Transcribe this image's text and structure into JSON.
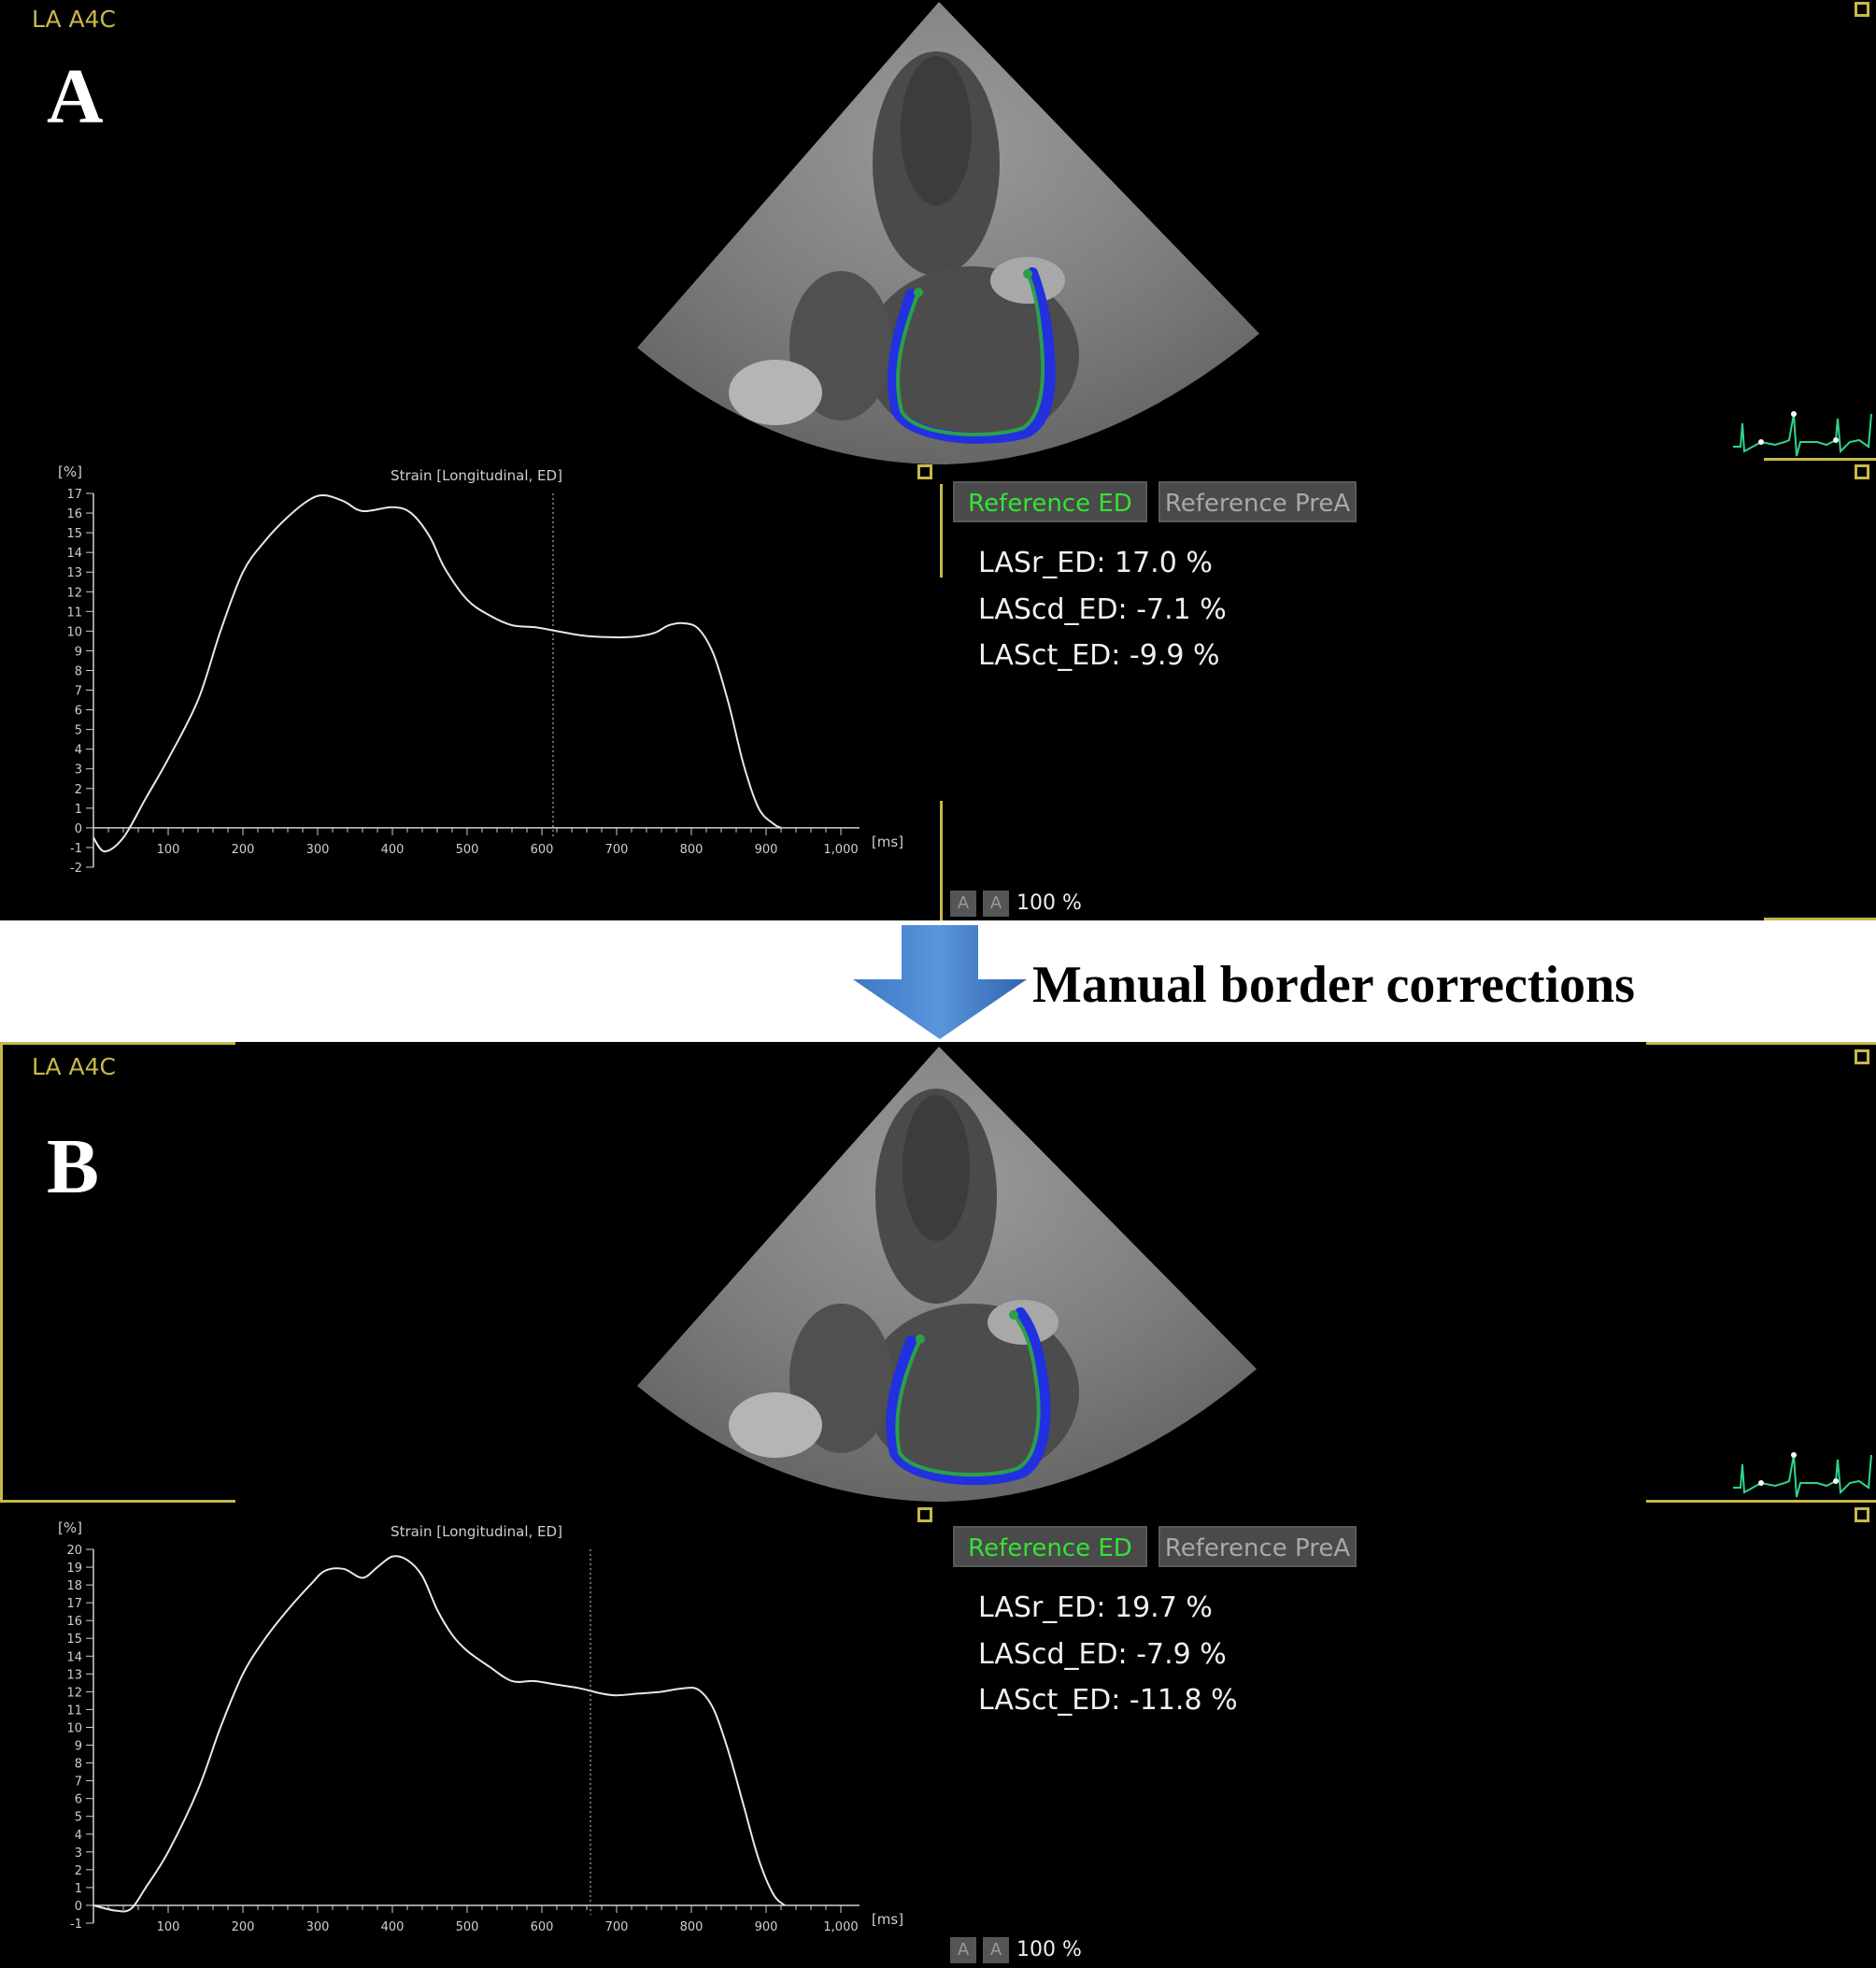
{
  "panels": [
    {
      "id": "A",
      "view_label": "LA A4C",
      "letter": "A",
      "buttons": {
        "reference_ed": "Reference ED",
        "reference_prea": "Reference PreA"
      },
      "metrics": {
        "lasr": "LASr_ED: 17.0 %",
        "lascd": "LAScd_ED: -7.1 %",
        "lasct": "LASct_ED: -9.9 %"
      },
      "zoom": {
        "icon_label": "A",
        "value": "100 %"
      },
      "chart_data": {
        "type": "line",
        "title": "Strain [Longitudinal, ED]",
        "ylabel": "[%]",
        "xlabel": "[ms]",
        "xlim": [
          0,
          1000
        ],
        "ylim": [
          -2,
          17
        ],
        "x_ticks": [
          "100",
          "200",
          "300",
          "400",
          "500",
          "600",
          "700",
          "800",
          "900",
          "1,000"
        ],
        "y_ticks": [
          "17",
          "16",
          "15",
          "14",
          "13",
          "12",
          "11",
          "10",
          "9",
          "8",
          "7",
          "6",
          "5",
          "4",
          "3",
          "2",
          "1",
          "0",
          "-1",
          "-2"
        ],
        "marker_x": 615,
        "series": [
          {
            "x": [
              0,
              15,
              40,
              70,
              100,
              140,
              170,
              200,
              230,
              260,
              290,
              310,
              335,
              360,
              400,
              425,
              450,
              470,
              500,
              530,
              560,
              590,
              620,
              650,
              680,
              720,
              750,
              770,
              790,
              810,
              830,
              850,
              870,
              890,
              910,
              920
            ],
            "y": [
              -0.5,
              -1.2,
              -0.5,
              1.5,
              3.5,
              6.5,
              10,
              13,
              14.6,
              15.8,
              16.7,
              16.9,
              16.6,
              16.1,
              16.3,
              16,
              14.8,
              13.2,
              11.6,
              10.8,
              10.3,
              10.2,
              10,
              9.8,
              9.7,
              9.7,
              9.9,
              10.3,
              10.4,
              10.1,
              8.8,
              6.3,
              3.2,
              1,
              0.2,
              0
            ]
          }
        ]
      }
    },
    {
      "id": "B",
      "view_label": "LA A4C",
      "letter": "B",
      "buttons": {
        "reference_ed": "Reference ED",
        "reference_prea": "Reference PreA"
      },
      "metrics": {
        "lasr": "LASr_ED: 19.7 %",
        "lascd": "LAScd_ED: -7.9 %",
        "lasct": "LASct_ED: -11.8 %"
      },
      "zoom": {
        "icon_label": "A",
        "value": "100 %"
      },
      "chart_data": {
        "type": "line",
        "title": "Strain [Longitudinal, ED]",
        "ylabel": "[%]",
        "xlabel": "[ms]",
        "xlim": [
          0,
          1000
        ],
        "ylim": [
          -1,
          20
        ],
        "x_ticks": [
          "100",
          "200",
          "300",
          "400",
          "500",
          "600",
          "700",
          "800",
          "900",
          "1,000"
        ],
        "y_ticks": [
          "20",
          "19",
          "18",
          "17",
          "16",
          "15",
          "14",
          "13",
          "12",
          "11",
          "10",
          "9",
          "8",
          "7",
          "6",
          "5",
          "4",
          "3",
          "2",
          "1",
          "0",
          "-1"
        ],
        "marker_x": 665,
        "series": [
          {
            "x": [
              0,
              30,
              50,
              70,
              100,
              140,
              170,
              200,
              230,
              260,
              290,
              310,
              335,
              360,
              380,
              400,
              420,
              440,
              460,
              480,
              500,
              530,
              560,
              590,
              620,
              650,
              680,
              700,
              730,
              760,
              790,
              810,
              830,
              850,
              870,
              890,
              910,
              925
            ],
            "y": [
              0,
              -0.3,
              -0.2,
              1,
              3,
              6.5,
              10,
              13,
              15,
              16.6,
              18,
              18.8,
              18.9,
              18.4,
              19,
              19.6,
              19.4,
              18.5,
              16.6,
              15.2,
              14.3,
              13.4,
              12.6,
              12.6,
              12.4,
              12.2,
              11.9,
              11.8,
              11.9,
              12,
              12.2,
              12.1,
              11,
              8.6,
              5.6,
              2.6,
              0.6,
              0
            ]
          }
        ]
      }
    }
  ],
  "transition": {
    "label": "Manual border corrections"
  }
}
